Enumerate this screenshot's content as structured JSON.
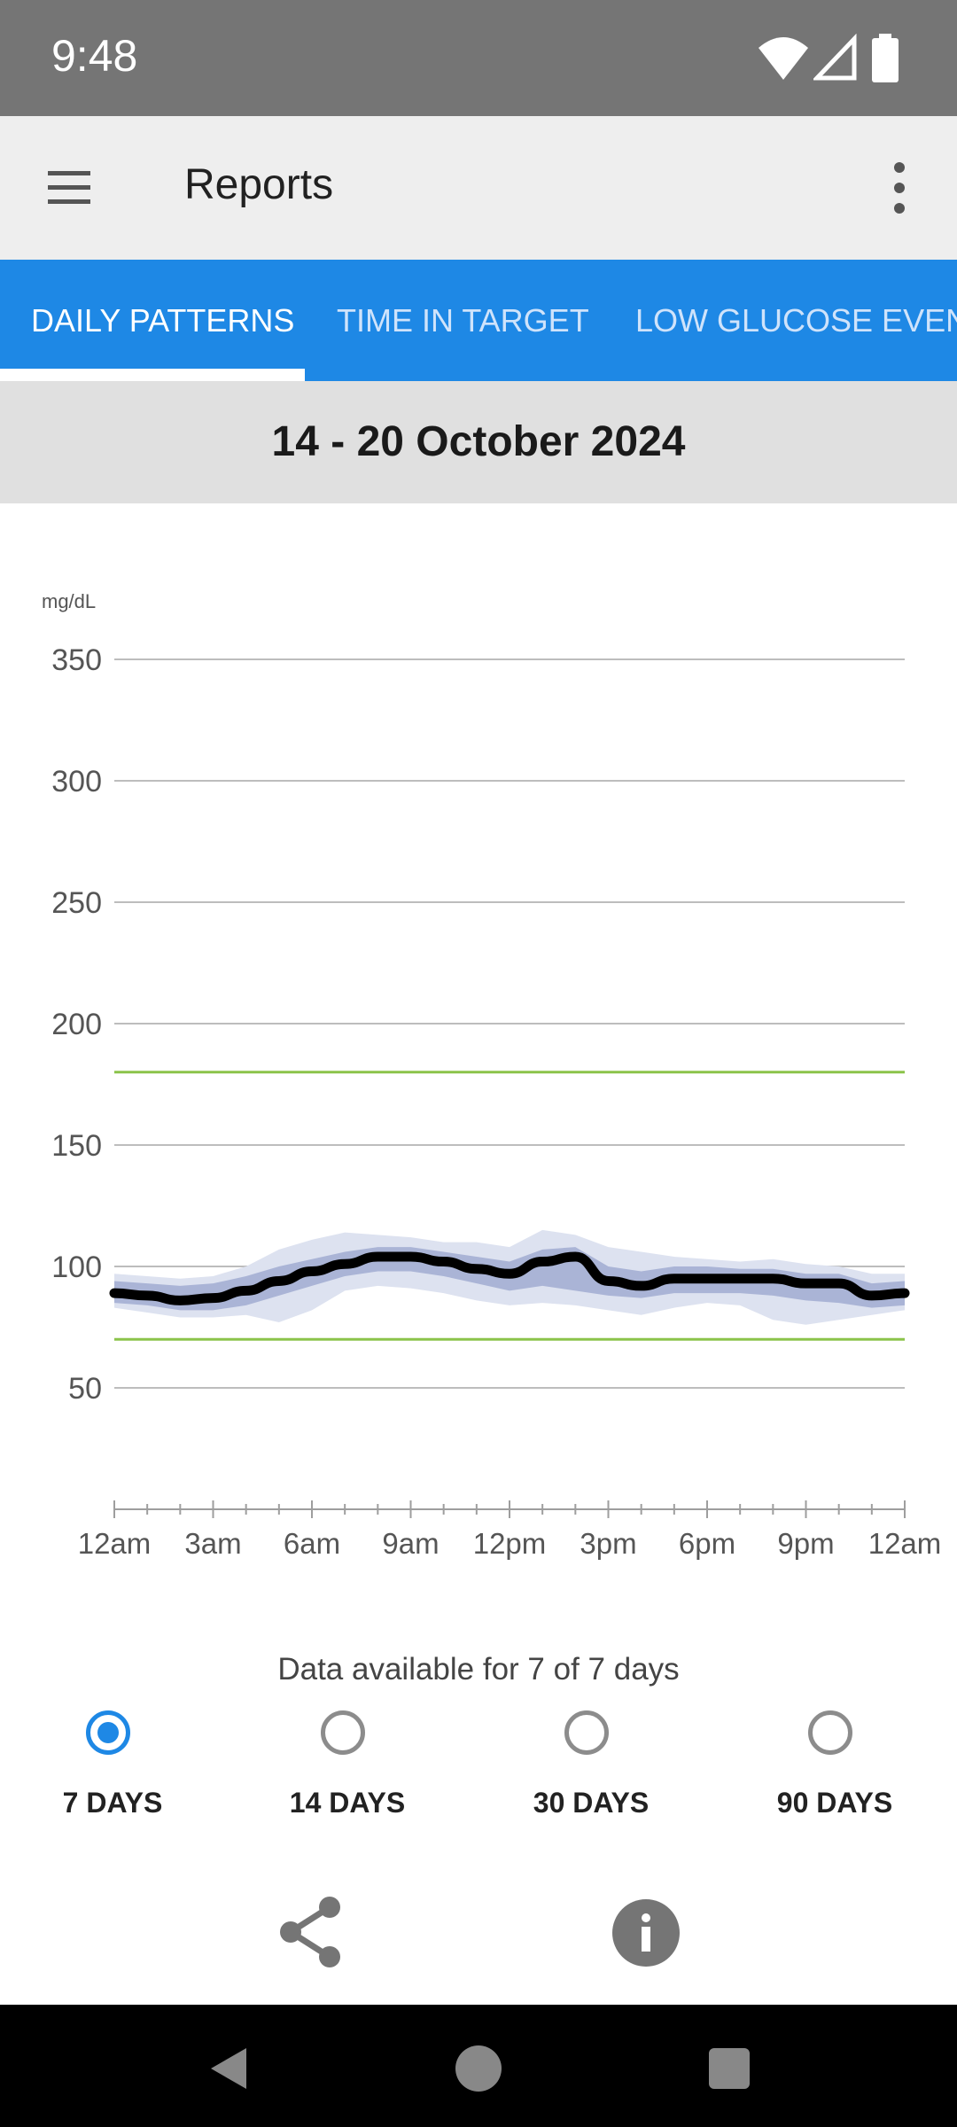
{
  "status_bar": {
    "time": "9:48",
    "icons": [
      "wifi-icon",
      "signal-icon",
      "battery-icon"
    ]
  },
  "app_bar": {
    "title": "Reports",
    "icons": [
      "menu-icon",
      "more-vert-icon"
    ]
  },
  "tabs": [
    {
      "label": "DAILY PATTERNS",
      "active": true
    },
    {
      "label": "TIME IN TARGET",
      "active": false
    },
    {
      "label": "LOW GLUCOSE EVENTS",
      "active": false
    }
  ],
  "date_range": "14 - 20 October 2024",
  "chart_data": {
    "type": "line",
    "unit_label": "mg/dL",
    "ylim": [
      0,
      350
    ],
    "yticks": [
      350,
      300,
      250,
      200,
      150,
      100,
      50
    ],
    "xticks": [
      "12am",
      "3am",
      "6am",
      "9am",
      "12pm",
      "3pm",
      "6pm",
      "9pm",
      "12am"
    ],
    "target_range": [
      70,
      180
    ],
    "colors": {
      "median": "#000000",
      "inner_band": "#aab4d6",
      "outer_band": "#dde2f0",
      "target": "#8bc34a",
      "grid": "#bdbdbd"
    },
    "x_hours": [
      0,
      1,
      2,
      3,
      4,
      5,
      6,
      7,
      8,
      9,
      10,
      11,
      12,
      13,
      14,
      15,
      16,
      17,
      18,
      19,
      20,
      21,
      22,
      23,
      24
    ],
    "median": [
      89,
      88,
      86,
      87,
      90,
      94,
      98,
      101,
      104,
      104,
      102,
      99,
      97,
      102,
      104,
      94,
      92,
      95,
      95,
      95,
      95,
      93,
      93,
      88,
      89
    ],
    "p25": [
      85,
      84,
      82,
      82,
      84,
      88,
      92,
      96,
      98,
      98,
      96,
      93,
      90,
      92,
      90,
      88,
      87,
      89,
      89,
      89,
      88,
      86,
      85,
      83,
      84
    ],
    "p75": [
      94,
      93,
      92,
      93,
      96,
      100,
      103,
      106,
      108,
      108,
      106,
      104,
      102,
      107,
      108,
      100,
      98,
      100,
      100,
      99,
      99,
      97,
      97,
      93,
      94
    ],
    "p10": [
      83,
      81,
      79,
      79,
      80,
      77,
      82,
      90,
      92,
      91,
      89,
      86,
      84,
      85,
      84,
      82,
      80,
      83,
      85,
      84,
      78,
      76,
      78,
      80,
      82
    ],
    "p90": [
      97,
      96,
      95,
      96,
      100,
      107,
      111,
      114,
      113,
      112,
      110,
      110,
      108,
      115,
      113,
      108,
      106,
      104,
      103,
      102,
      103,
      101,
      100,
      97,
      97
    ]
  },
  "availability_text": "Data available for 7 of 7 days",
  "range_options": [
    {
      "label": "7 DAYS",
      "selected": true
    },
    {
      "label": "14 DAYS",
      "selected": false
    },
    {
      "label": "30 DAYS",
      "selected": false
    },
    {
      "label": "90 DAYS",
      "selected": false
    }
  ],
  "actions": {
    "icons": [
      "share-icon",
      "info-icon"
    ]
  },
  "nav": {
    "icons": [
      "back-icon",
      "home-icon",
      "recents-icon"
    ]
  }
}
